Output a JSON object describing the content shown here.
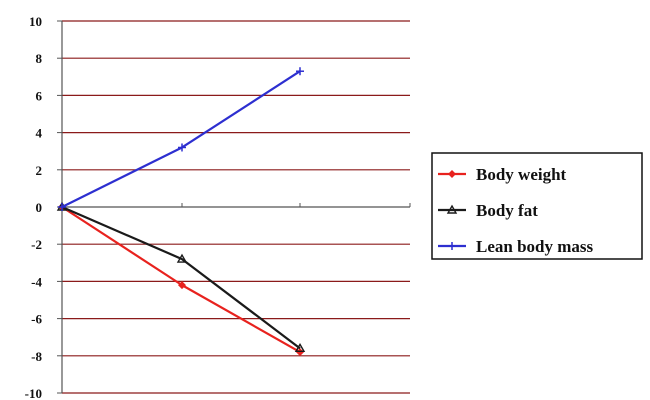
{
  "chart_data": {
    "type": "line",
    "x": [
      0,
      1,
      2
    ],
    "ylim": [
      -10,
      10
    ],
    "yticks": [
      10,
      8,
      6,
      4,
      2,
      0,
      -2,
      -4,
      -6,
      -8,
      -10
    ],
    "grid": "horizontal",
    "legend_position": "right",
    "series": [
      {
        "name": "Body weight",
        "color": "#e8221e",
        "marker": "diamond",
        "values": [
          0,
          -4.2,
          -7.8
        ]
      },
      {
        "name": "Body fat",
        "color": "#1a1a1a",
        "marker": "triangle",
        "values": [
          0,
          -2.8,
          -7.6
        ]
      },
      {
        "name": "Lean body mass",
        "color": "#2d2fd0",
        "marker": "star",
        "values": [
          0,
          3.2,
          7.3
        ]
      }
    ]
  },
  "colors": {
    "gridline": "#8b1a1a",
    "axis": "#555555",
    "legend_border": "#111111"
  }
}
